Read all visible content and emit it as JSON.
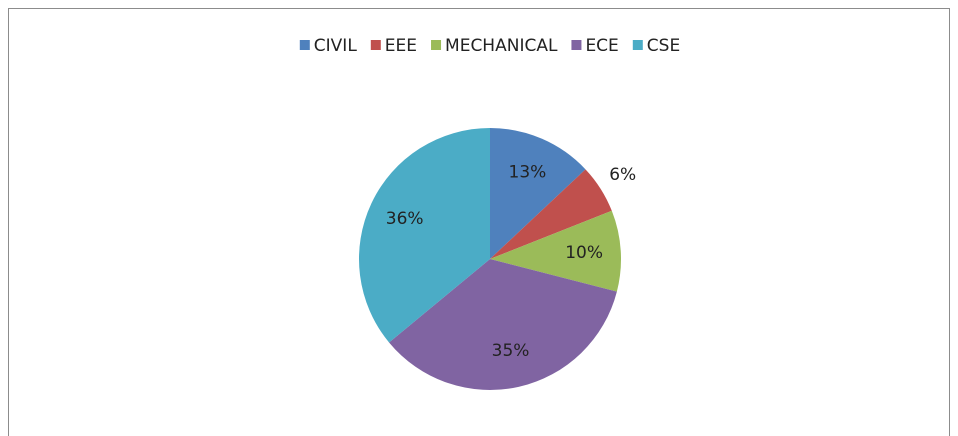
{
  "chart_data": {
    "type": "pie",
    "categories": [
      "CIVIL",
      "EEE",
      "MECHANICAL",
      "ECE",
      "CSE"
    ],
    "values": [
      13,
      6,
      10,
      35,
      36
    ],
    "value_labels": [
      "13%",
      "6%",
      "10%",
      "35%",
      "36%"
    ],
    "colors": [
      "#4f81bd",
      "#c0504d",
      "#9bbb59",
      "#8064a2",
      "#4bacc6"
    ],
    "legend": "top"
  }
}
